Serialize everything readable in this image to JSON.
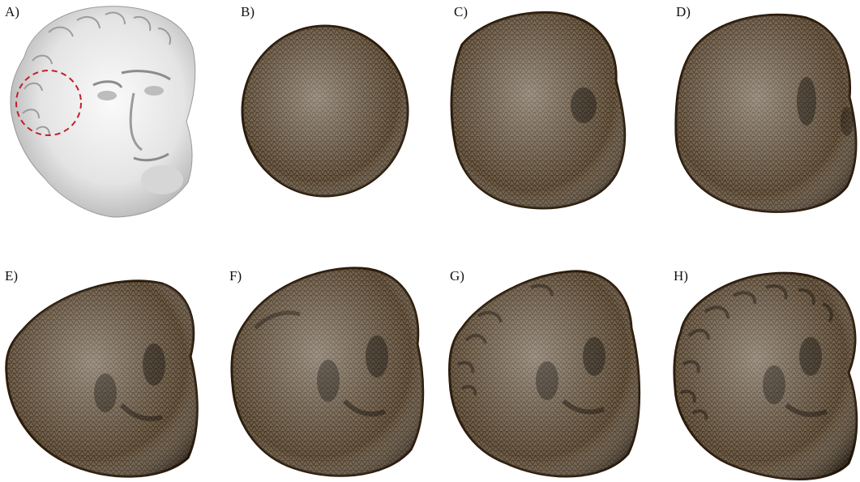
{
  "figure": {
    "panels": [
      {
        "id": "A",
        "label": "A)",
        "kind": "rendered-bust-reference"
      },
      {
        "id": "B",
        "label": "B)",
        "kind": "mesh-sphere"
      },
      {
        "id": "C",
        "label": "C)",
        "kind": "mesh-stage"
      },
      {
        "id": "D",
        "label": "D)",
        "kind": "mesh-stage"
      },
      {
        "id": "E",
        "label": "E)",
        "kind": "mesh-stage"
      },
      {
        "id": "F",
        "label": "F)",
        "kind": "mesh-stage"
      },
      {
        "id": "G",
        "label": "G)",
        "kind": "mesh-stage"
      },
      {
        "id": "H",
        "label": "H)",
        "kind": "mesh-stage"
      }
    ],
    "colors": {
      "mesh_fill": "#6b5a45",
      "mesh_line": "#3a2a18",
      "mesh_edge": "#2a1a0a",
      "bust_light": "#f2f2f2",
      "bust_shadow": "#a8a8a8",
      "highlight_circle": "#c0202a"
    }
  }
}
